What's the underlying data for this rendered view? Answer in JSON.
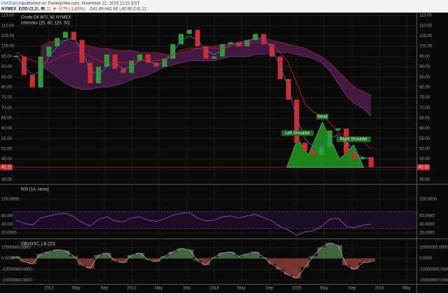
{
  "header": {
    "author": "IAmSatoshi",
    "published": "published on TradingView.com, November 22, 2015 22:21 EST",
    "symbol": "NYMEX_EOD:CL1!, W",
    "price": "41.11",
    "change": "▼ -0.79 (-1.83%)",
    "ohlc": "O41.49 H41.66 L40.96 C41.11"
  },
  "chart_data": [
    {
      "type": "candlestick",
      "title": "Crude Oil WTI, W, NYMEX",
      "subtitle": "Ichimoku (20, 60, 120, 30)",
      "x": [
        2011.6,
        2011.7,
        2011.8,
        2011.9,
        2012.0,
        2012.1,
        2012.2,
        2012.3,
        2012.4,
        2012.5,
        2012.6,
        2012.7,
        2012.8,
        2012.9,
        2013.0,
        2013.1,
        2013.2,
        2013.3,
        2013.4,
        2013.5,
        2013.6,
        2013.7,
        2013.8,
        2013.9,
        2014.0,
        2014.1,
        2014.2,
        2014.3,
        2014.4,
        2014.5,
        2014.6,
        2014.7,
        2014.8,
        2014.9,
        2015.0,
        2015.1,
        2015.2,
        2015.3,
        2015.4,
        2015.5,
        2015.6,
        2015.7,
        2015.8,
        2015.9
      ],
      "values": [
        95,
        86,
        80,
        95,
        100,
        104,
        107,
        103,
        92,
        82,
        90,
        96,
        89,
        87,
        93,
        96,
        92,
        90,
        94,
        101,
        106,
        108,
        100,
        94,
        95,
        101,
        102,
        100,
        103,
        106,
        101,
        95,
        84,
        74,
        53,
        49,
        47,
        51,
        59,
        60,
        48,
        45,
        46,
        41.11
      ],
      "up_color": "#2e9e2e",
      "down_color": "#d42a2a",
      "series": [
        {
          "color": "#3b6fd4",
          "values": [
            96,
            90,
            86,
            88,
            95,
            100,
            103,
            104,
            98,
            88,
            86,
            90,
            92,
            89,
            90,
            93,
            93,
            91,
            92,
            97,
            103,
            105,
            103,
            98,
            96,
            98,
            101,
            101,
            102,
            104,
            104,
            99,
            90,
            80,
            65,
            55,
            51,
            50,
            55,
            57,
            54,
            48,
            46,
            45
          ]
        },
        {
          "color": "#c41e1e",
          "values": [
            97,
            95,
            93,
            92,
            92,
            94,
            96,
            97,
            97,
            95,
            93,
            92,
            92,
            92,
            92,
            93,
            93,
            93,
            94,
            96,
            98,
            99,
            99,
            99,
            99,
            99,
            100,
            100,
            101,
            102,
            102,
            101,
            97,
            92,
            82,
            72,
            68,
            66,
            63,
            58,
            56,
            55,
            54,
            50
          ]
        }
      ],
      "cloud": {
        "color": "#5a1f5a",
        "upper": [
          null,
          null,
          null,
          100,
          102,
          103,
          103,
          102,
          101,
          100,
          99,
          99,
          98,
          98,
          98,
          97,
          97,
          97,
          96,
          96,
          97,
          98,
          99,
          100,
          100,
          101,
          101,
          102,
          103,
          104,
          104,
          103,
          102,
          101,
          100,
          99,
          97,
          95,
          92,
          88,
          84,
          80,
          78,
          76
        ],
        "lower": [
          null,
          null,
          null,
          90,
          88,
          85,
          82,
          80,
          79,
          79,
          80,
          80,
          81,
          82,
          84,
          85,
          86,
          88,
          90,
          91,
          92,
          93,
          93,
          93,
          93,
          94,
          95,
          95,
          95,
          96,
          96,
          97,
          97,
          97,
          96,
          95,
          94,
          92,
          88,
          82,
          76,
          72,
          70,
          66
        ]
      },
      "last_price": 41.11,
      "last_price_color": "#d42a2a",
      "pattern": {
        "color": "#1f9a1f",
        "x": [
          2014.88,
          2015.01,
          2015.14,
          2015.31,
          2015.52,
          2015.69,
          2015.81
        ],
        "y": [
          41,
          55,
          47,
          63,
          45,
          52,
          41
        ]
      },
      "annotations": [
        {
          "text": "Left Shoulder",
          "x": 2015.01,
          "y": 56
        },
        {
          "text": "Head",
          "x": 2015.31,
          "y": 64
        },
        {
          "text": "Right Shoulder",
          "x": 2015.69,
          "y": 53
        }
      ],
      "xlim": [
        2011.56,
        2016.45
      ],
      "ylim": [
        33.3,
        116.4
      ],
      "yticks": [
        {
          "value": 35,
          "label": "35.00"
        },
        {
          "value": 40,
          "label": "40.00"
        },
        {
          "value": 45,
          "label": "45.00"
        },
        {
          "value": 50,
          "label": "50.00"
        },
        {
          "value": 55,
          "label": "55.00"
        },
        {
          "value": 60,
          "label": "60.00"
        },
        {
          "value": 65,
          "label": "65.00"
        },
        {
          "value": 70,
          "label": "70.00"
        },
        {
          "value": 75,
          "label": "75.00"
        },
        {
          "value": 80,
          "label": "80.00"
        },
        {
          "value": 85,
          "label": "85.00"
        },
        {
          "value": 90,
          "label": "90.00"
        },
        {
          "value": 95,
          "label": "95.00"
        },
        {
          "value": 100,
          "label": "100.00"
        },
        {
          "value": 105,
          "label": "105.00"
        },
        {
          "value": 110,
          "label": "110.00"
        },
        {
          "value": 115,
          "label": "115.00"
        }
      ]
    },
    {
      "type": "line",
      "title": "RSI (14, close)",
      "x": [
        2011.6,
        2011.7,
        2011.8,
        2011.9,
        2012.0,
        2012.1,
        2012.2,
        2012.3,
        2012.4,
        2012.5,
        2012.6,
        2012.7,
        2012.8,
        2012.9,
        2013.0,
        2013.1,
        2013.2,
        2013.3,
        2013.4,
        2013.5,
        2013.6,
        2013.7,
        2013.8,
        2013.9,
        2014.0,
        2014.1,
        2014.2,
        2014.3,
        2014.4,
        2014.5,
        2014.6,
        2014.7,
        2014.8,
        2014.9,
        2015.0,
        2015.1,
        2015.2,
        2015.3,
        2015.4,
        2015.5,
        2015.6,
        2015.7,
        2015.8,
        2015.9
      ],
      "values": [
        50,
        42,
        38,
        55,
        60,
        64,
        66,
        58,
        45,
        36,
        52,
        58,
        48,
        46,
        55,
        58,
        50,
        47,
        53,
        62,
        66,
        68,
        55,
        48,
        50,
        58,
        60,
        55,
        60,
        64,
        56,
        48,
        35,
        26,
        14,
        22,
        25,
        35,
        52,
        55,
        35,
        32,
        38,
        40
      ],
      "color": "#8a4fb8",
      "band": [
        30,
        70
      ],
      "band_color": "#9a5fc8",
      "xlim": [
        2011.56,
        2016.45
      ],
      "ylim": [
        8,
        133
      ],
      "yticks": [
        {
          "value": 20,
          "label": "20.0000"
        },
        {
          "value": 40,
          "label": "40.0000"
        },
        {
          "value": 60,
          "label": "60.0000"
        },
        {
          "value": 100,
          "label": "100.0000"
        }
      ]
    },
    {
      "type": "area",
      "title": "OBVOSC_LB (20)",
      "x": [
        2011.6,
        2011.7,
        2011.8,
        2011.9,
        2012.0,
        2012.1,
        2012.2,
        2012.3,
        2012.4,
        2012.5,
        2012.6,
        2012.7,
        2012.8,
        2012.9,
        2013.0,
        2013.1,
        2013.2,
        2013.3,
        2013.4,
        2013.5,
        2013.6,
        2013.7,
        2013.8,
        2013.9,
        2014.0,
        2014.1,
        2014.2,
        2014.3,
        2014.4,
        2014.5,
        2014.6,
        2014.7,
        2014.8,
        2014.9,
        2015.0,
        2015.1,
        2015.2,
        2015.3,
        2015.4,
        2015.5,
        2015.6,
        2015.7,
        2015.8,
        2015.9
      ],
      "values": [
        2000000,
        -3000000,
        -5000000,
        4000000,
        6000000,
        8000000,
        7000000,
        2000000,
        -6000000,
        -9000000,
        3000000,
        5000000,
        -2000000,
        -4000000,
        3000000,
        5000000,
        -1000000,
        -3000000,
        2000000,
        6000000,
        9000000,
        8000000,
        -2000000,
        -6000000,
        1000000,
        5000000,
        6000000,
        2000000,
        4000000,
        6000000,
        1000000,
        -5000000,
        -10000000,
        -15000000,
        -18000000,
        -8000000,
        2000000,
        10000000,
        14000000,
        12000000,
        -6000000,
        -10000000,
        -4000000,
        -3000000
      ],
      "up_color": "#6fae6f",
      "down_color": "#d45a4a",
      "xlim": [
        2011.56,
        2016.45
      ],
      "ylim": [
        -22500000,
        16900000
      ],
      "yticks": [
        {
          "value": -20000000,
          "label": "-20000000.0000"
        },
        {
          "value": -10000000,
          "label": "-10000000.0000"
        },
        {
          "value": 0,
          "label": "0.0000"
        },
        {
          "value": 10000000,
          "label": "10000000.0000"
        }
      ],
      "xticks": [
        {
          "value": 2012,
          "label": "2012"
        },
        {
          "value": 2012.33,
          "label": "May"
        },
        {
          "value": 2012.67,
          "label": "Sep"
        },
        {
          "value": 2013,
          "label": "2013"
        },
        {
          "value": 2013.33,
          "label": "May"
        },
        {
          "value": 2013.67,
          "label": "Sep"
        },
        {
          "value": 2014,
          "label": "2014"
        },
        {
          "value": 2014.33,
          "label": "May"
        },
        {
          "value": 2014.67,
          "label": "Sep"
        },
        {
          "value": 2015,
          "label": "2015"
        },
        {
          "value": 2015.33,
          "label": "May"
        },
        {
          "value": 2015.67,
          "label": "Sep"
        },
        {
          "value": 2016,
          "label": "2016"
        },
        {
          "value": 2016.33,
          "label": "May"
        }
      ]
    }
  ]
}
